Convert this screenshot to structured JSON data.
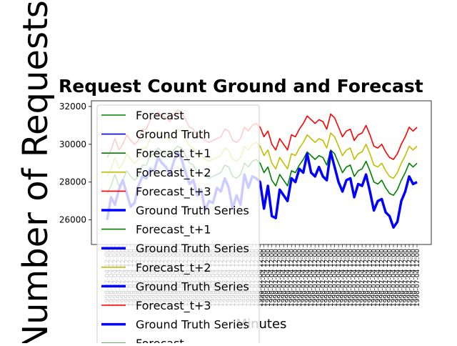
{
  "chart_data": {
    "type": "line",
    "title": "Request Count Ground and Forecast",
    "xlabel": "Minutes",
    "ylabel": "Number of Requests",
    "ylim": [
      24700,
      32300
    ],
    "yticks": [
      26000,
      28000,
      30000,
      32000
    ],
    "ytick_labels": [
      "26000",
      "28000",
      "30000",
      "32000"
    ],
    "grid": false,
    "legend_position": "overlapping plot, upper-left, extends below axes",
    "x_tick_text": "1998-07-04 12:00",
    "x_count": 80,
    "series": [
      {
        "name": "Ground Truth",
        "color": "#0000ff",
        "values": [
          26000,
          27200,
          26800,
          27600,
          28100,
          27400,
          26700,
          26900,
          27800,
          28300,
          28200,
          28700,
          28600,
          29300,
          29000,
          28800,
          28400,
          29100,
          29600,
          29200,
          28500,
          27900,
          28100,
          27300,
          27600,
          26500,
          27000,
          26900,
          27700,
          27500,
          28200,
          27700,
          26600,
          27300,
          26800,
          28400,
          27700,
          28300,
          28200,
          28000,
          26600,
          27800,
          26200,
          26100,
          27600,
          27300,
          27000,
          28200,
          28000,
          28700,
          28500,
          29500,
          28500,
          28300,
          28800,
          28300,
          28100,
          29600,
          28800,
          28000,
          27500,
          28100,
          28200,
          27200,
          27900,
          27800,
          28400,
          27500,
          26500,
          27000,
          27100,
          26400,
          26200,
          25600,
          25900,
          27000,
          27500,
          28300,
          27900,
          28000
        ]
      },
      {
        "name": "Forecast_t+1",
        "color": "#008000",
        "values": [
          27400,
          27800,
          28400,
          27800,
          28100,
          28600,
          28300,
          28100,
          28300,
          28900,
          28900,
          29400,
          29500,
          29800,
          29600,
          29500,
          29300,
          29700,
          29900,
          29800,
          29400,
          29000,
          28900,
          28500,
          28500,
          28300,
          28200,
          28300,
          28400,
          28500,
          28900,
          28800,
          28300,
          28200,
          28400,
          29000,
          28800,
          29100,
          29200,
          29000,
          28500,
          28800,
          28100,
          27800,
          28400,
          28100,
          27800,
          28600,
          28500,
          28900,
          29200,
          29600,
          29400,
          29200,
          29400,
          29300,
          28900,
          29700,
          29500,
          29000,
          28500,
          28800,
          28900,
          28300,
          28600,
          28700,
          29100,
          28600,
          28000,
          27900,
          28100,
          27700,
          27400,
          27300,
          27600,
          28100,
          28500,
          29000,
          28800,
          29000
        ]
      },
      {
        "name": "Forecast_t+2",
        "color": "#bfbf00",
        "values": [
          28300,
          28700,
          29300,
          28700,
          29000,
          29500,
          29200,
          29000,
          29200,
          29800,
          29800,
          30300,
          30400,
          30700,
          30500,
          30400,
          30200,
          30600,
          30800,
          30700,
          30300,
          29900,
          29800,
          29400,
          29400,
          29200,
          29100,
          29200,
          29300,
          29400,
          29800,
          29700,
          29200,
          29100,
          29300,
          29900,
          29700,
          30000,
          30100,
          29900,
          29400,
          29700,
          29000,
          28700,
          29300,
          29000,
          28700,
          29500,
          29400,
          29800,
          30100,
          30500,
          30300,
          30100,
          30300,
          30200,
          29800,
          30600,
          30400,
          29900,
          29400,
          29700,
          29800,
          29200,
          29500,
          29600,
          30000,
          29500,
          28900,
          28800,
          29000,
          28600,
          28300,
          28200,
          28500,
          29000,
          29400,
          29900,
          29700,
          29900
        ]
      },
      {
        "name": "Forecast_t+3",
        "color": "#ff0000",
        "values": [
          29300,
          29700,
          30300,
          29700,
          30000,
          30500,
          30200,
          30000,
          30200,
          30800,
          30800,
          31300,
          31400,
          31700,
          31500,
          31400,
          31200,
          31600,
          31800,
          31700,
          31300,
          30900,
          30800,
          30400,
          30400,
          30200,
          30100,
          30200,
          30300,
          30400,
          30800,
          30700,
          30200,
          30100,
          30300,
          30900,
          30700,
          31000,
          31100,
          30900,
          30400,
          30700,
          30000,
          29700,
          30300,
          30000,
          29700,
          30500,
          30400,
          30800,
          31100,
          31500,
          31300,
          31100,
          31300,
          31200,
          30800,
          31600,
          31400,
          30900,
          30400,
          30700,
          30800,
          30200,
          30500,
          30600,
          31000,
          30500,
          29900,
          29800,
          30000,
          29600,
          29300,
          29200,
          29500,
          30000,
          30400,
          30900,
          30700,
          30900
        ]
      }
    ],
    "legend_entries": [
      {
        "label": "Forecast",
        "color": "#008000",
        "thick": false
      },
      {
        "label": "Ground Truth",
        "color": "#0000ff",
        "thick": false
      },
      {
        "label": "Forecast_t+1",
        "color": "#008000",
        "thick": false
      },
      {
        "label": "Forecast_t+2",
        "color": "#bfbf00",
        "thick": false
      },
      {
        "label": "Forecast_t+3",
        "color": "#ff0000",
        "thick": false
      },
      {
        "label": "Ground Truth Series",
        "color": "#0000ff",
        "thick": true
      },
      {
        "label": "Forecast_t+1",
        "color": "#008000",
        "thick": false
      },
      {
        "label": "Ground Truth Series",
        "color": "#0000ff",
        "thick": true
      },
      {
        "label": "Forecast_t+2",
        "color": "#bfbf00",
        "thick": false
      },
      {
        "label": "Ground Truth Series",
        "color": "#0000ff",
        "thick": true
      },
      {
        "label": "Forecast_t+3",
        "color": "#ff0000",
        "thick": false
      },
      {
        "label": "Ground Truth Series",
        "color": "#0000ff",
        "thick": true
      },
      {
        "label": "Forecast",
        "color": "#008000",
        "thick": false
      }
    ]
  }
}
